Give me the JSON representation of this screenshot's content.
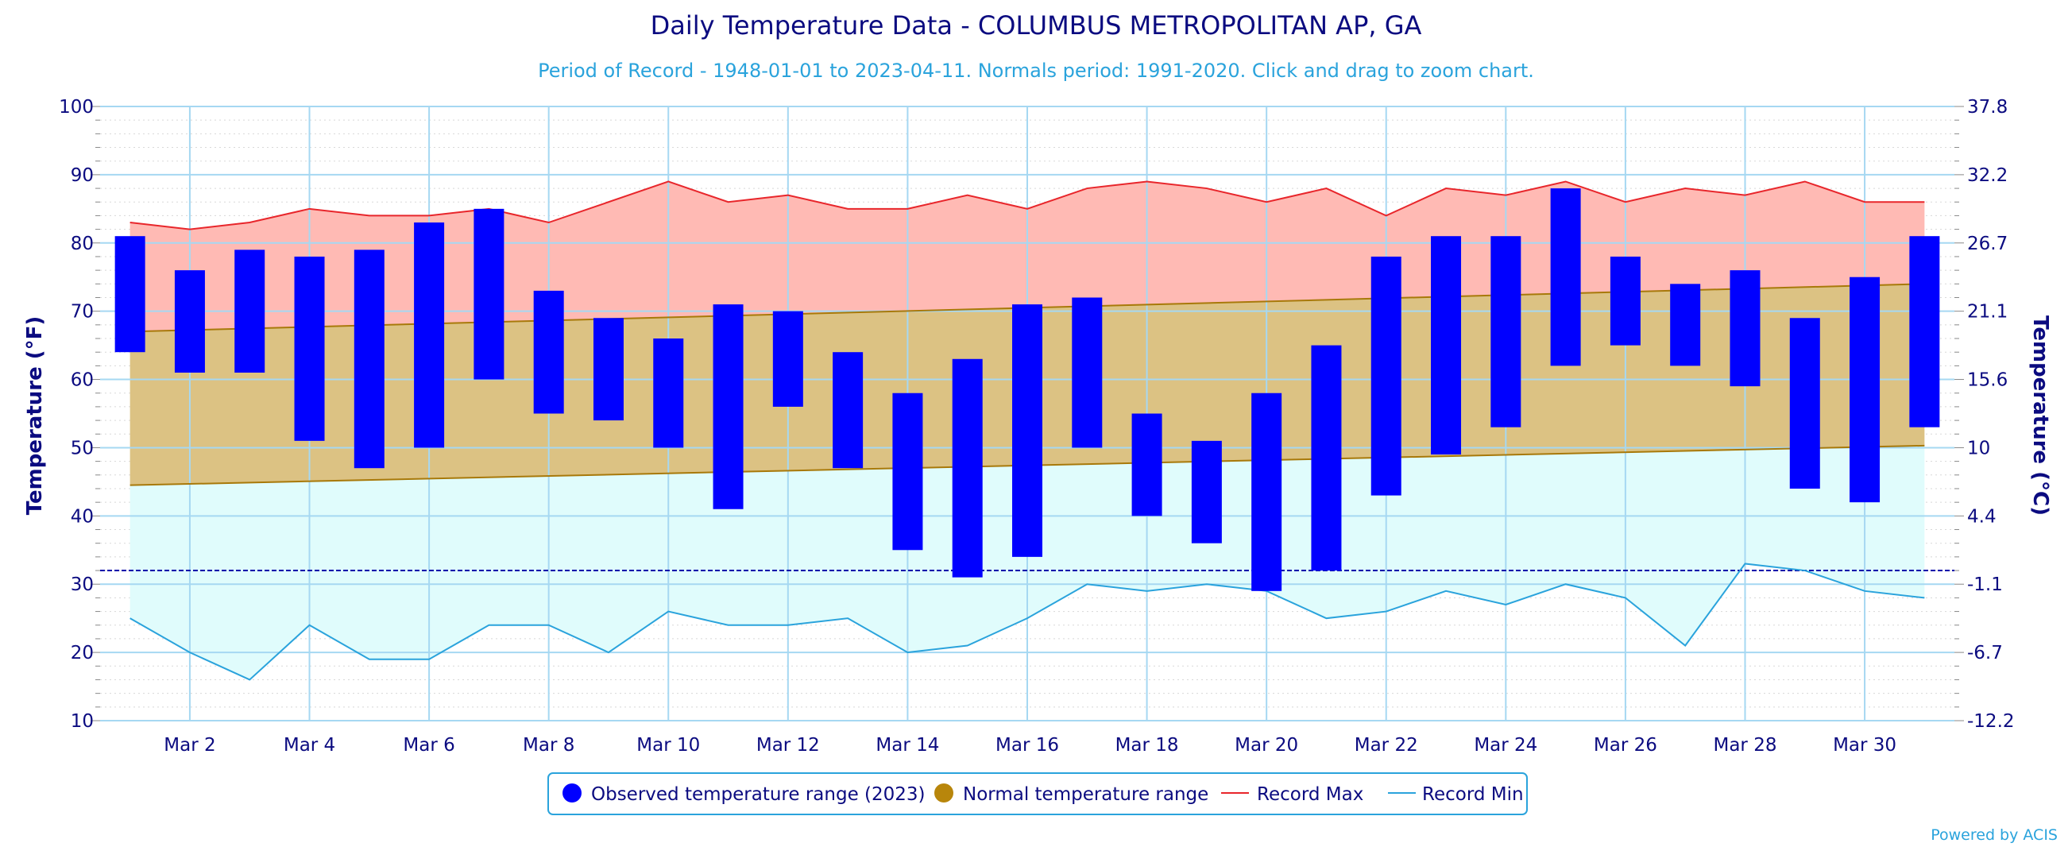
{
  "chart_data": {
    "type": "bar",
    "title": "Daily Temperature Data - COLUMBUS METROPOLITAN AP, GA",
    "subtitle": "Period of Record - 1948-01-01 to 2023-04-11. Normals period: 1991-2020. Click and drag to zoom chart.",
    "ylabel_left": "Temperature (°F)",
    "ylabel_right": "Temperature (°C)",
    "ylim": [
      10,
      100
    ],
    "yticks_left": [
      "100",
      "90",
      "80",
      "70",
      "60",
      "50",
      "40",
      "30",
      "20",
      "10"
    ],
    "yticks_right": [
      "37.8",
      "32.2",
      "26.7",
      "21.1",
      "15.6",
      "10",
      "4.4",
      "-1.1",
      "-6.7",
      "-12.2"
    ],
    "x_days": [
      1,
      31
    ],
    "xtick_labels": [
      "Mar 2",
      "Mar 4",
      "Mar 6",
      "Mar 8",
      "Mar 10",
      "Mar 12",
      "Mar 14",
      "Mar 16",
      "Mar 18",
      "Mar 20",
      "Mar 22",
      "Mar 24",
      "Mar 26",
      "Mar 28",
      "Mar 30"
    ],
    "xtick_days": [
      2,
      4,
      6,
      8,
      10,
      12,
      14,
      16,
      18,
      20,
      22,
      24,
      26,
      28,
      30
    ],
    "freezing_line": 32,
    "grid": true,
    "legend_position": "bottom-center",
    "observed": {
      "name": "Observed temperature range (2023)",
      "color": "#0000ff",
      "low": [
        64,
        61,
        61,
        51,
        47,
        50,
        60,
        55,
        54,
        50,
        41,
        56,
        47,
        35,
        31,
        34,
        50,
        40,
        36,
        29,
        32,
        43,
        49,
        53,
        62,
        65,
        62,
        59,
        44,
        42,
        53
      ],
      "high": [
        81,
        76,
        79,
        78,
        79,
        83,
        85,
        73,
        69,
        66,
        71,
        70,
        64,
        58,
        63,
        71,
        72,
        55,
        51,
        58,
        65,
        78,
        81,
        81,
        88,
        78,
        74,
        76,
        69,
        75,
        81
      ]
    },
    "normal": {
      "name": "Normal temperature range",
      "color": "#b8860b",
      "low_start": 44.5,
      "low_end": 50.3,
      "high_start": 67,
      "high_end": 74
    },
    "record_max": {
      "name": "Record Max",
      "color": "#e8262b",
      "values": [
        83,
        82,
        83,
        85,
        84,
        84,
        85,
        83,
        86,
        89,
        86,
        87,
        85,
        85,
        87,
        85,
        88,
        89,
        88,
        86,
        88,
        84,
        88,
        87,
        89,
        86,
        88,
        87,
        89,
        86,
        86
      ]
    },
    "record_min": {
      "name": "Record Min",
      "color": "#2aa3dc",
      "values": [
        25,
        20,
        16,
        24,
        19,
        19,
        24,
        24,
        20,
        26,
        24,
        24,
        25,
        20,
        21,
        25,
        30,
        29,
        30,
        29,
        25,
        26,
        29,
        27,
        30,
        28,
        21,
        33,
        32,
        29,
        28
      ]
    },
    "credit": "Powered by ACIS"
  }
}
